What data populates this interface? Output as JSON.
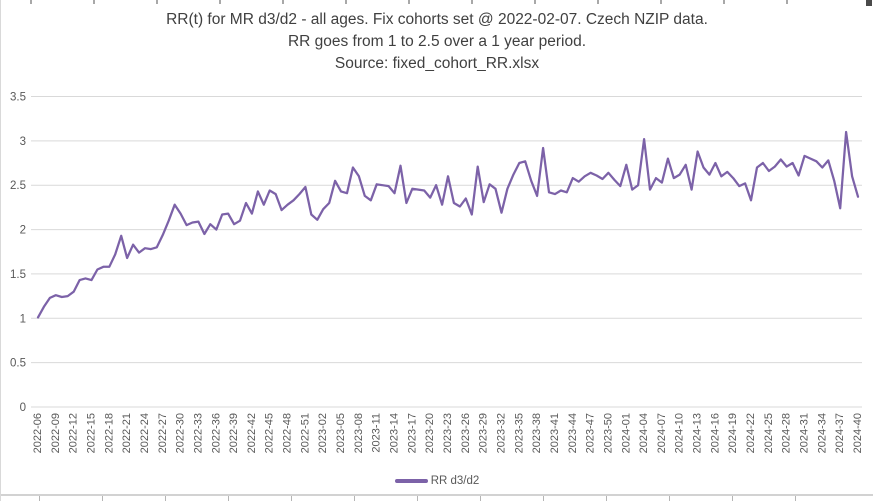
{
  "chart": {
    "title_line1": "RR(t) for MR d3/d2 - all ages. Fix cohorts set @ 2022-02-07. Czech NZIP data.",
    "title_line2": "RR goes from 1 to 2.5 over a 1 year period.",
    "title_line3": "Source: fixed_cohort_RR.xlsx",
    "legend_label": "RR d3/d2",
    "line_color": "#7C62A8",
    "gridline_color": "#D9D9D9",
    "axis_text_color": "#595959",
    "title_color": "#404040"
  },
  "chart_data": {
    "type": "line",
    "title": "RR(t) for MR d3/d2 - all ages. Fix cohorts set @ 2022-02-07. Czech NZIP data. RR goes from 1 to 2.5 over a 1 year period. Source: fixed_cohort_RR.xlsx",
    "xlabel": "",
    "ylabel": "",
    "ylim": [
      0,
      3.5
    ],
    "yticks": [
      0,
      0.5,
      1,
      1.5,
      2,
      2.5,
      3,
      3.5
    ],
    "ytick_labels": [
      "0",
      "0.5",
      "1",
      "1.5",
      "2",
      "2.5",
      "3",
      "3.5"
    ],
    "grid": true,
    "legend_position": "bottom",
    "x_tick_step": 3,
    "x_label_rotation": -90,
    "x": [
      "2022-06",
      "2022-07",
      "2022-08",
      "2022-09",
      "2022-10",
      "2022-11",
      "2022-12",
      "2022-13",
      "2022-14",
      "2022-15",
      "2022-16",
      "2022-17",
      "2022-18",
      "2022-19",
      "2022-20",
      "2022-21",
      "2022-22",
      "2022-23",
      "2022-24",
      "2022-25",
      "2022-26",
      "2022-27",
      "2022-28",
      "2022-29",
      "2022-30",
      "2022-31",
      "2022-32",
      "2022-33",
      "2022-34",
      "2022-35",
      "2022-36",
      "2022-37",
      "2022-38",
      "2022-39",
      "2022-40",
      "2022-41",
      "2022-42",
      "2022-43",
      "2022-44",
      "2022-45",
      "2022-46",
      "2022-47",
      "2022-48",
      "2022-49",
      "2022-50",
      "2022-51",
      "2022-52",
      "2023-01",
      "2023-02",
      "2023-03",
      "2023-04",
      "2023-05",
      "2023-06",
      "2023-07",
      "2023-08",
      "2023-09",
      "2023-10",
      "2023-11",
      "2023-12",
      "2023-13",
      "2023-14",
      "2023-15",
      "2023-16",
      "2023-17",
      "2023-18",
      "2023-19",
      "2023-20",
      "2023-21",
      "2023-22",
      "2023-23",
      "2023-24",
      "2023-25",
      "2023-26",
      "2023-27",
      "2023-28",
      "2023-29",
      "2023-30",
      "2023-31",
      "2023-32",
      "2023-33",
      "2023-34",
      "2023-35",
      "2023-36",
      "2023-37",
      "2023-38",
      "2023-39",
      "2023-40",
      "2023-41",
      "2023-42",
      "2023-43",
      "2023-44",
      "2023-45",
      "2023-46",
      "2023-47",
      "2023-48",
      "2023-49",
      "2023-50",
      "2023-51",
      "2023-52",
      "2024-01",
      "2024-02",
      "2024-03",
      "2024-04",
      "2024-05",
      "2024-06",
      "2024-07",
      "2024-08",
      "2024-09",
      "2024-10",
      "2024-11",
      "2024-12",
      "2024-13",
      "2024-14",
      "2024-15",
      "2024-16",
      "2024-17",
      "2024-18",
      "2024-19",
      "2024-20",
      "2024-21",
      "2024-22",
      "2024-23",
      "2024-24",
      "2024-25",
      "2024-26",
      "2024-27",
      "2024-28",
      "2024-29",
      "2024-30",
      "2024-31",
      "2024-32",
      "2024-33",
      "2024-34",
      "2024-35",
      "2024-36",
      "2024-37",
      "2024-38",
      "2024-39",
      "2024-40"
    ],
    "series": [
      {
        "name": "RR d3/d2",
        "color": "#7C62A8",
        "values": [
          1.01,
          1.13,
          1.23,
          1.26,
          1.24,
          1.25,
          1.3,
          1.43,
          1.45,
          1.43,
          1.55,
          1.58,
          1.58,
          1.72,
          1.93,
          1.68,
          1.83,
          1.74,
          1.79,
          1.78,
          1.8,
          1.94,
          2.1,
          2.28,
          2.18,
          2.05,
          2.08,
          2.09,
          1.95,
          2.06,
          2.0,
          2.17,
          2.18,
          2.06,
          2.1,
          2.3,
          2.18,
          2.43,
          2.28,
          2.44,
          2.4,
          2.22,
          2.28,
          2.33,
          2.4,
          2.48,
          2.17,
          2.11,
          2.23,
          2.3,
          2.55,
          2.43,
          2.41,
          2.7,
          2.6,
          2.38,
          2.33,
          2.51,
          2.5,
          2.49,
          2.41,
          2.72,
          2.3,
          2.46,
          2.45,
          2.44,
          2.36,
          2.5,
          2.28,
          2.6,
          2.3,
          2.26,
          2.35,
          2.17,
          2.71,
          2.31,
          2.51,
          2.46,
          2.19,
          2.46,
          2.62,
          2.75,
          2.77,
          2.55,
          2.38,
          2.92,
          2.42,
          2.4,
          2.44,
          2.42,
          2.58,
          2.54,
          2.6,
          2.64,
          2.61,
          2.57,
          2.64,
          2.56,
          2.49,
          2.73,
          2.45,
          2.5,
          3.02,
          2.45,
          2.58,
          2.53,
          2.8,
          2.58,
          2.62,
          2.73,
          2.45,
          2.88,
          2.7,
          2.62,
          2.75,
          2.6,
          2.65,
          2.58,
          2.49,
          2.52,
          2.33,
          2.7,
          2.75,
          2.66,
          2.71,
          2.79,
          2.71,
          2.75,
          2.61,
          2.83,
          2.8,
          2.77,
          2.7,
          2.78,
          2.55,
          2.24,
          3.1,
          2.6,
          2.37
        ]
      }
    ]
  }
}
